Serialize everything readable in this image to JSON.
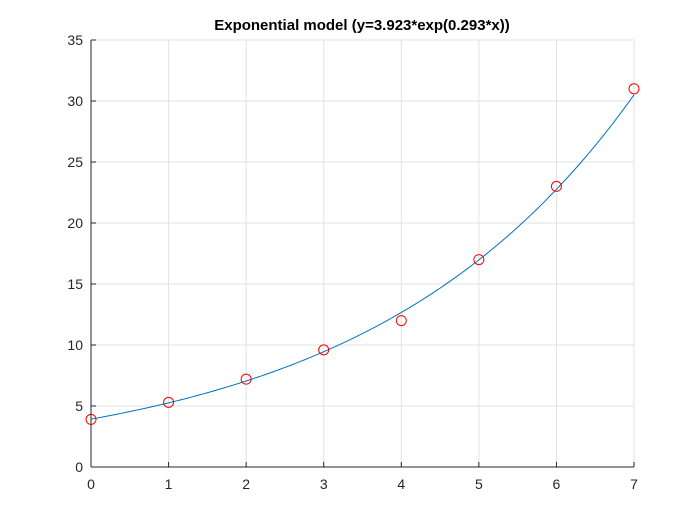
{
  "chart_data": {
    "type": "scatter",
    "title": "Exponential model (y=3.923*exp(0.293*x))",
    "xlabel": "",
    "ylabel": "",
    "xlim": [
      0,
      7
    ],
    "ylim": [
      0,
      35
    ],
    "x_ticks": [
      0,
      1,
      2,
      3,
      4,
      5,
      6,
      7
    ],
    "y_ticks": [
      0,
      5,
      10,
      15,
      20,
      25,
      30,
      35
    ],
    "grid": true,
    "legend": "none",
    "model": {
      "a": 3.923,
      "b": 0.293
    },
    "series": [
      {
        "kind": "markers",
        "marker": "circle",
        "color": "#ff0000",
        "x": [
          0,
          1,
          2,
          3,
          4,
          5,
          6,
          7
        ],
        "y": [
          3.9,
          5.3,
          7.2,
          9.6,
          12,
          17,
          23,
          31
        ]
      },
      {
        "kind": "fitted-curve",
        "color": "#0072bd",
        "x_range": [
          0,
          7
        ]
      }
    ],
    "colors": {
      "grid": "#e1e1e1",
      "axis": "#262626",
      "markers": "#ff0000",
      "curve": "#0072bd"
    }
  }
}
